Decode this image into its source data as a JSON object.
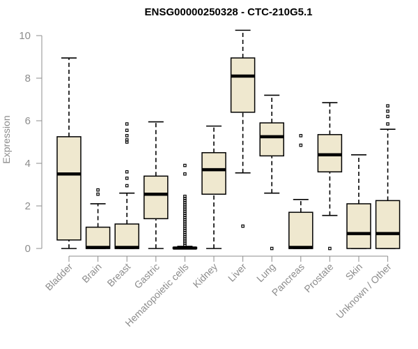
{
  "chart_data": {
    "type": "boxplot",
    "title": "ENSG00000250328 - CTC-210G5.1",
    "xlabel": "",
    "ylabel": "Expression",
    "ylim": [
      0,
      10
    ],
    "yticks": [
      0,
      2,
      4,
      6,
      8,
      10
    ],
    "colors": {
      "box_fill": "#efe8cf",
      "box_stroke": "#000000",
      "axis": "#8c8c8c"
    },
    "categories": [
      "Bladder",
      "Brain",
      "Breast",
      "Gastric",
      "Hematopoietic cells",
      "Kidney",
      "Liver",
      "Lung",
      "Pancreas",
      "Prostate",
      "Skin",
      "Unknown / Other"
    ],
    "boxes": [
      {
        "name": "Bladder",
        "whisker_low": 0,
        "q1": 0.4,
        "median": 3.5,
        "q3": 5.25,
        "whisker_high": 8.95,
        "outliers": []
      },
      {
        "name": "Brain",
        "whisker_low": 0,
        "q1": 0,
        "median": 0.05,
        "q3": 1.0,
        "whisker_high": 2.1,
        "outliers": [
          2.55,
          2.75
        ]
      },
      {
        "name": "Breast",
        "whisker_low": 0,
        "q1": 0,
        "median": 0.05,
        "q3": 1.15,
        "whisker_high": 2.6,
        "outliers": [
          2.95,
          3.3,
          3.6,
          5.0,
          5.1,
          5.3,
          5.55,
          5.85
        ]
      },
      {
        "name": "Gastric",
        "whisker_low": 0,
        "q1": 1.4,
        "median": 2.55,
        "q3": 3.4,
        "whisker_high": 5.95,
        "outliers": []
      },
      {
        "name": "Hematopoietic cells",
        "whisker_low": 0,
        "q1": 0,
        "median": 0.02,
        "q3": 0.05,
        "whisker_high": 0.1,
        "outliers": [
          0.15,
          0.25,
          0.35,
          0.45,
          0.55,
          0.65,
          0.75,
          0.85,
          0.95,
          1.05,
          1.15,
          1.25,
          1.35,
          1.45,
          1.55,
          1.65,
          1.75,
          1.85,
          1.95,
          2.05,
          2.15,
          2.25,
          2.35,
          2.45,
          3.5,
          3.9
        ]
      },
      {
        "name": "Kidney",
        "whisker_low": 0,
        "q1": 2.55,
        "median": 3.7,
        "q3": 4.5,
        "whisker_high": 5.75,
        "outliers": []
      },
      {
        "name": "Liver",
        "whisker_low": 3.55,
        "q1": 6.4,
        "median": 8.1,
        "q3": 8.95,
        "whisker_high": 10.25,
        "outliers": [
          1.05
        ]
      },
      {
        "name": "Lung",
        "whisker_low": 2.6,
        "q1": 4.35,
        "median": 5.25,
        "q3": 5.9,
        "whisker_high": 7.2,
        "outliers": [
          0
        ]
      },
      {
        "name": "Pancreas",
        "whisker_low": 0,
        "q1": 0,
        "median": 0.05,
        "q3": 1.7,
        "whisker_high": 2.3,
        "outliers": [
          4.85,
          5.3
        ]
      },
      {
        "name": "Prostate",
        "whisker_low": 1.55,
        "q1": 3.6,
        "median": 4.4,
        "q3": 5.35,
        "whisker_high": 6.85,
        "outliers": [
          0
        ]
      },
      {
        "name": "Skin",
        "whisker_low": 0,
        "q1": 0,
        "median": 0.7,
        "q3": 2.1,
        "whisker_high": 4.4,
        "outliers": []
      },
      {
        "name": "Unknown / Other",
        "whisker_low": 0,
        "q1": 0,
        "median": 0.7,
        "q3": 2.25,
        "whisker_high": 5.6,
        "outliers": [
          5.85,
          6.2,
          6.45,
          6.7
        ]
      }
    ]
  }
}
